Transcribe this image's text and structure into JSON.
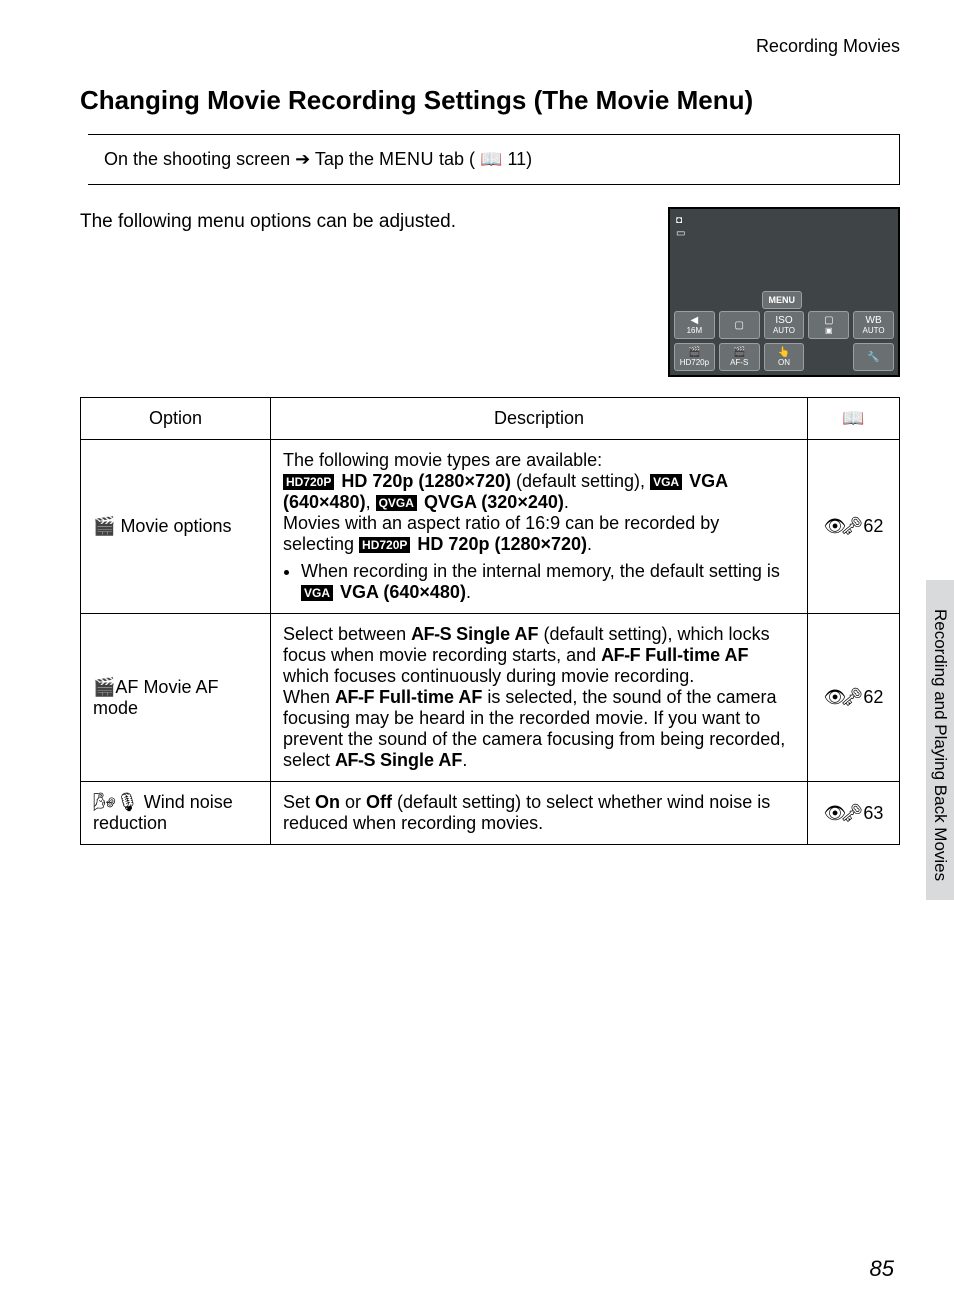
{
  "header": {
    "running_title": "Recording Movies"
  },
  "title": "Changing Movie Recording Settings (The Movie Menu)",
  "navbox": {
    "pre": "On the shooting screen ",
    "arrow": "➔",
    "post_a": " Tap the ",
    "menu_word": "MENU",
    "post_b": " tab (",
    "book": "📖",
    "pageref": "11)",
    "full": "On the shooting screen ➔ Tap the MENU tab (📖11)"
  },
  "intro": "The following menu options can be adjusted.",
  "camera": {
    "corner": [
      "◘",
      "▭"
    ],
    "menu_label": "MENU",
    "row1": [
      {
        "icon": "◀",
        "sub": "16M"
      },
      {
        "icon": "▢",
        "sub": ""
      },
      {
        "icon": "ISO",
        "sub": "AUTO"
      },
      {
        "icon": "▢",
        "sub": "▣"
      },
      {
        "icon": "WB",
        "sub": "AUTO"
      }
    ],
    "row2": [
      {
        "icon": "🎬",
        "sub": "HD720p"
      },
      {
        "icon": "🎬",
        "sub": "AF-S"
      },
      {
        "icon": "👆",
        "sub": "ON"
      },
      {
        "icon": "",
        "sub": "",
        "empty": true
      },
      {
        "icon": "🔧",
        "sub": ""
      }
    ]
  },
  "table": {
    "headers": {
      "option": "Option",
      "description": "Description",
      "ref": "📖"
    },
    "rows": [
      {
        "option_icon": "🎬",
        "option_label": "Movie options",
        "desc": {
          "line1": "The following movie types are available:",
          "hd_icon": "HD720P",
          "hd_text": "HD 720p (1280×720)",
          "hd_note": " (default setting), ",
          "vga_icon": "VGA",
          "vga_text": "VGA (640×480)",
          "sep": ", ",
          "qvga_icon": "QVGA",
          "qvga_text": "QVGA (320×240)",
          "period": ".",
          "line2a": "Movies with an aspect ratio of 16:9 can be recorded by selecting ",
          "line2b": "HD 720p (1280×720)",
          "line2c": ".",
          "bullet_a": "When recording in the internal memory, the default setting is ",
          "bullet_b": "VGA (640×480)",
          "bullet_c": "."
        },
        "ref_icon": "👁🗝",
        "ref": "62"
      },
      {
        "option_icon": "🎬AF",
        "option_label": "Movie AF mode",
        "desc": {
          "a": "Select between ",
          "afs": "AF-S",
          "afs_b": "Single AF",
          "b": " (default setting), which locks focus when movie recording starts, and ",
          "aff": "AF-F",
          "aff_b": "Full-time AF",
          "c": " which focuses continuously during movie recording.",
          "d": "When ",
          "e": "Full-time AF",
          "f": " is selected, the sound of the camera focusing may be heard in the recorded movie. If you want to prevent the sound of the camera focusing from being recorded, select ",
          "g": "Single AF",
          "h": "."
        },
        "ref_icon": "👁🗝",
        "ref": "62"
      },
      {
        "option_icon": "🌬🎙",
        "option_label": "Wind noise reduction",
        "desc": {
          "a": "Set ",
          "on": "On",
          "b": " or ",
          "off": "Off",
          "c": " (default setting) to select whether wind noise is reduced when recording movies."
        },
        "ref_icon": "👁🗝",
        "ref": "63"
      }
    ]
  },
  "side_tab": "Recording and Playing Back Movies",
  "page_number": "85"
}
